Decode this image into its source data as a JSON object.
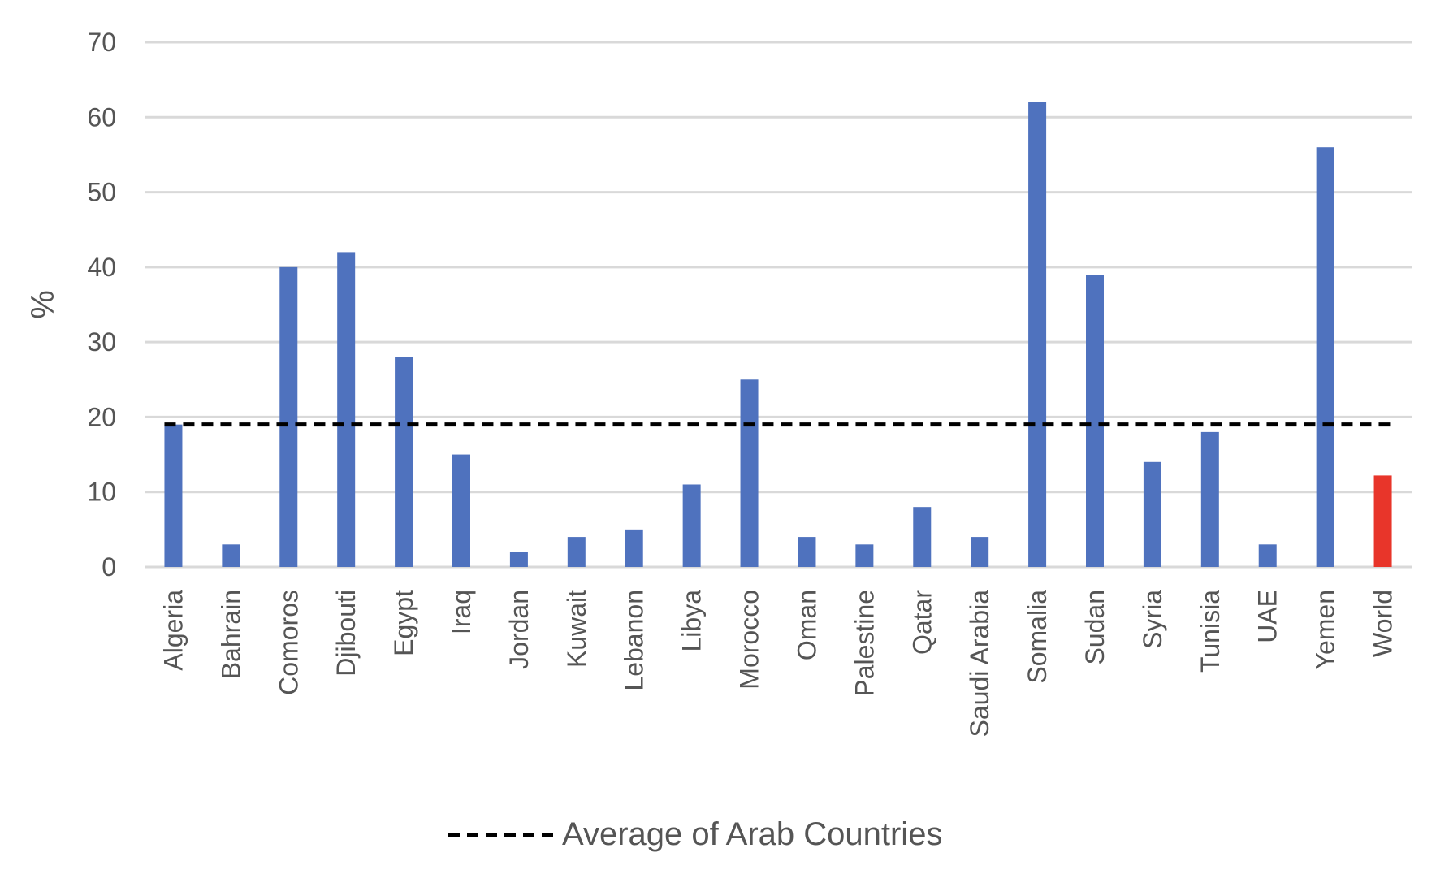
{
  "chart_data": {
    "type": "bar",
    "title": "",
    "xlabel": "",
    "ylabel": "%",
    "ylim": [
      0,
      70
    ],
    "yticks": [
      0,
      10,
      20,
      30,
      40,
      50,
      60,
      70
    ],
    "grid": true,
    "categories": [
      "Algeria",
      "Bahrain",
      "Comoros",
      "Djibouti",
      "Egypt",
      "Iraq",
      "Jordan",
      "Kuwait",
      "Lebanon",
      "Libya",
      "Morocco",
      "Oman",
      "Palestine",
      "Qatar",
      "Saudi Arabia",
      "Somalia",
      "Sudan",
      "Syria",
      "Tunisia",
      "UAE",
      "Yemen",
      "World"
    ],
    "values": [
      19,
      3,
      40,
      42,
      28,
      15,
      2,
      4,
      5,
      11,
      25,
      4,
      3,
      8,
      4,
      62,
      39,
      14,
      18,
      3,
      56,
      12.2
    ],
    "bar_color": "#4f72be",
    "highlight": {
      "category": "World",
      "color": "#e8352a"
    },
    "reference_line": {
      "name": "Average of Arab Countries",
      "value": 19,
      "color": "#000000",
      "style": "dashed"
    },
    "legend": {
      "placement": "bottom",
      "entries": [
        "Average of Arab Countries"
      ]
    }
  }
}
